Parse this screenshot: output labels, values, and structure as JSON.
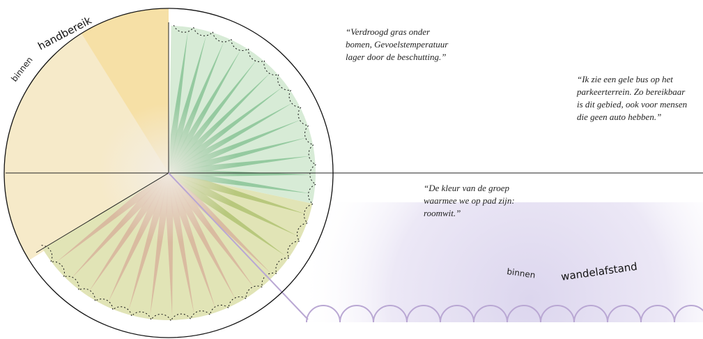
{
  "labels": {
    "circle": {
      "small": "binnen",
      "large": "handbereik"
    },
    "walk": {
      "small": "binnen",
      "large": "wandelafstand"
    }
  },
  "quotes": [
    [
      "“Verdroogd gras onder",
      "bomen, Gevoelstemperatuur",
      "lager door de beschutting.”"
    ],
    [
      "“Ik zie een gele bus op het",
      "parkeerterrein. Zo bereikbaar",
      "is dit gebied, ook voor mensen",
      "die geen auto hebben.”"
    ],
    [
      "“De kleur van de groep",
      "waarmee we op pad zijn:",
      "roomwit.”"
    ]
  ]
}
